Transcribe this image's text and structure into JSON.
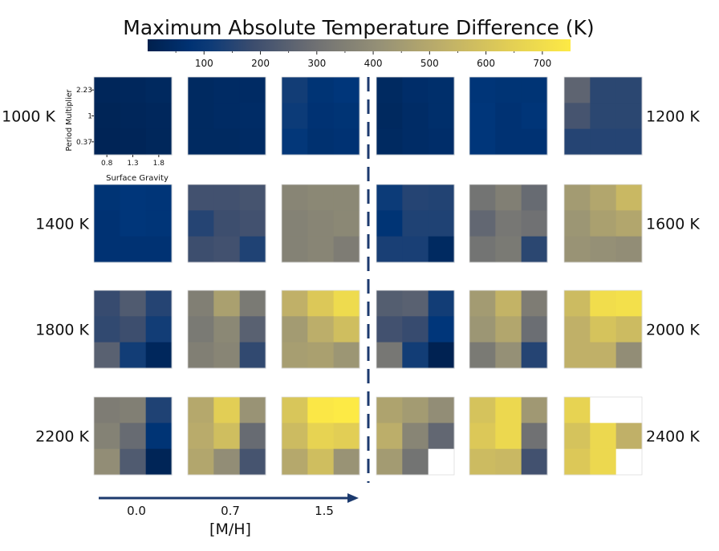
{
  "chart_data": {
    "type": "heatmap",
    "title": "Maximum Absolute Temperature Difference (K)",
    "colorbar": {
      "colormap": "cividis",
      "range": [
        0,
        750
      ],
      "ticks": [
        100,
        200,
        300,
        400,
        500,
        600,
        700
      ],
      "tick_labels": [
        "100",
        "200",
        "300",
        "400",
        "500",
        "600",
        "700"
      ]
    },
    "inset_axes": {
      "xlabel": "Surface Gravity",
      "ylabel": "Period Multiplier",
      "x_ticks": [
        "0.8",
        "1.3",
        "1.8"
      ],
      "y_ticks_top_to_bottom": [
        "2.23",
        "1",
        "0.37"
      ]
    },
    "metallicity": {
      "label": "[M/H]",
      "values": [
        "0.0",
        "0.7",
        "1.5"
      ]
    },
    "grid_note": "Each panel is a 3x3 grid: rows = period multiplier (top 2.23, middle 1, bottom 0.37), cols = surface gravity (0.8, 1.3, 1.8). Panels in each half correspond to [M/H] 0.0, 0.7, 1.5. Null = no data (white).",
    "panel_rows": [
      {
        "left_label": "1000 K",
        "right_label": "1200 K",
        "left_panels": [
          [
            [
              25,
              30,
              35
            ],
            [
              20,
              25,
              30
            ],
            [
              18,
              22,
              28
            ]
          ],
          [
            [
              40,
              45,
              45
            ],
            [
              40,
              45,
              50
            ],
            [
              40,
              40,
              45
            ]
          ],
          [
            [
              120,
              80,
              90
            ],
            [
              110,
              75,
              80
            ],
            [
              95,
              70,
              75
            ]
          ]
        ],
        "right_panels": [
          [
            [
              40,
              55,
              60
            ],
            [
              35,
              50,
              60
            ],
            [
              40,
              50,
              55
            ]
          ],
          [
            [
              85,
              80,
              80
            ],
            [
              90,
              75,
              85
            ],
            [
              90,
              75,
              75
            ]
          ],
          [
            [
              260,
              160,
              160
            ],
            [
              210,
              160,
              160
            ],
            [
              150,
              150,
              150
            ]
          ]
        ]
      },
      {
        "left_label": "1400 K",
        "right_label": "1600 K",
        "left_panels": [
          [
            [
              80,
              90,
              85
            ],
            [
              75,
              90,
              85
            ],
            [
              75,
              75,
              75
            ]
          ],
          [
            [
              200,
              200,
              210
            ],
            [
              150,
              190,
              200
            ],
            [
              190,
              200,
              140
            ]
          ],
          [
            [
              370,
              380,
              380
            ],
            [
              360,
              370,
              380
            ],
            [
              360,
              370,
              340
            ]
          ]
        ],
        "right_panels": [
          [
            [
              110,
              150,
              145
            ],
            [
              80,
              140,
              140
            ],
            [
              130,
              130,
              40
            ]
          ],
          [
            [
              310,
              350,
              280
            ],
            [
              270,
              320,
              300
            ],
            [
              310,
              330,
              160
            ]
          ],
          [
            [
              450,
              490,
              560
            ],
            [
              430,
              470,
              490
            ],
            [
              420,
              410,
              400
            ]
          ]
        ]
      },
      {
        "left_label": "1800 K",
        "right_label": "2000 K",
        "left_panels": [
          [
            [
              180,
              230,
              150
            ],
            [
              170,
              190,
              120
            ],
            [
              250,
              120,
              30
            ]
          ],
          [
            [
              350,
              470,
              330
            ],
            [
              330,
              380,
              250
            ],
            [
              350,
              370,
              170
            ]
          ],
          [
            [
              530,
              620,
              690
            ],
            [
              450,
              520,
              580
            ],
            [
              460,
              470,
              430
            ]
          ]
        ],
        "right_panels": [
          [
            [
              240,
              250,
              120
            ],
            [
              200,
              180,
              90
            ],
            [
              320,
              120,
              10
            ]
          ],
          [
            [
              450,
              540,
              340
            ],
            [
              430,
              490,
              290
            ],
            [
              330,
              410,
              150
            ]
          ],
          [
            [
              570,
              700,
              710
            ],
            [
              530,
              600,
              570
            ],
            [
              530,
              530,
              400
            ]
          ]
        ]
      },
      {
        "left_label": "2200 K",
        "right_label": "2400 K",
        "left_panels": [
          [
            [
              340,
              350,
              140
            ],
            [
              360,
              280,
              80
            ],
            [
              400,
              230,
              20
            ]
          ],
          [
            [
              500,
              640,
              420
            ],
            [
              510,
              580,
              280
            ],
            [
              490,
              400,
              210
            ]
          ],
          [
            [
              610,
              740,
              750
            ],
            [
              570,
              660,
              640
            ],
            [
              500,
              580,
              420
            ]
          ]
        ],
        "right_panels": [
          [
            [
              480,
              450,
              400
            ],
            [
              520,
              370,
              270
            ],
            [
              450,
              310,
              null
            ]
          ],
          [
            [
              600,
              680,
              440
            ],
            [
              620,
              680,
              300
            ],
            [
              570,
              560,
              200
            ]
          ],
          [
            [
              660,
              null,
              null
            ],
            [
              600,
              680,
              530
            ],
            [
              620,
              680,
              null
            ]
          ]
        ]
      }
    ]
  }
}
